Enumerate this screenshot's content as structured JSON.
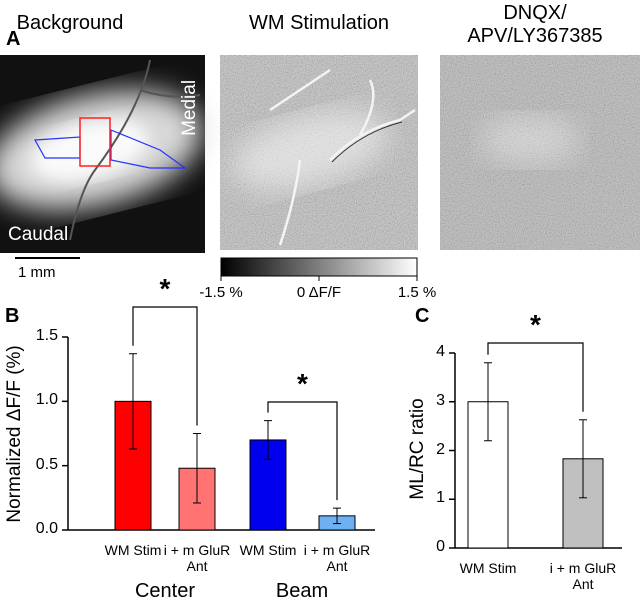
{
  "panel_a": {
    "label": "A",
    "titles": [
      "Background",
      "WM Stimulation",
      "DNQX/\nAPV/LY367385"
    ],
    "orientation": [
      "Medial",
      "Caudal"
    ],
    "scale_bar": "1 mm",
    "colorbar": {
      "clim": [
        -1.5,
        1.5
      ],
      "ticks": [
        {
          "value": -1.5,
          "label": "-1.5 %"
        },
        {
          "value": 0,
          "label": "0 ΔF/F"
        },
        {
          "value": 1.5,
          "label": "1.5 %"
        }
      ]
    }
  },
  "chart_data": [
    {
      "type": "bar",
      "label": "B",
      "ylabel": "Normalized ΔF/F (%)",
      "categories": [
        "WM Stim",
        "i + m GluR Ant",
        "WM Stim",
        "i + m GluR Ant"
      ],
      "groups": [
        "Center",
        "Beam"
      ],
      "values": [
        1.0,
        0.48,
        0.7,
        0.11
      ],
      "errors": [
        0.37,
        0.27,
        0.15,
        0.06
      ],
      "colors": [
        "#ff0000",
        "#ff7373",
        "#0000ee",
        "#6fb0f2"
      ],
      "ylim": [
        0,
        1.5
      ],
      "yticks": [
        {
          "value": 0,
          "label": "0.0"
        },
        0.5,
        {
          "value": 1,
          "label": "1.0"
        },
        1.5
      ],
      "annotations": [
        "*",
        "*"
      ]
    },
    {
      "type": "bar",
      "label": "C",
      "ylabel": "ML/RC ratio",
      "categories": [
        "WM Stim",
        "i + m GluR Ant"
      ],
      "values": [
        3.0,
        1.83
      ],
      "errors": [
        0.8,
        0.8
      ],
      "colors": [
        "#ffffff",
        "#c0c0c0"
      ],
      "ylim": [
        0,
        4
      ],
      "yticks": [
        0,
        1,
        2,
        3,
        4
      ],
      "annotations": [
        "*"
      ]
    }
  ]
}
